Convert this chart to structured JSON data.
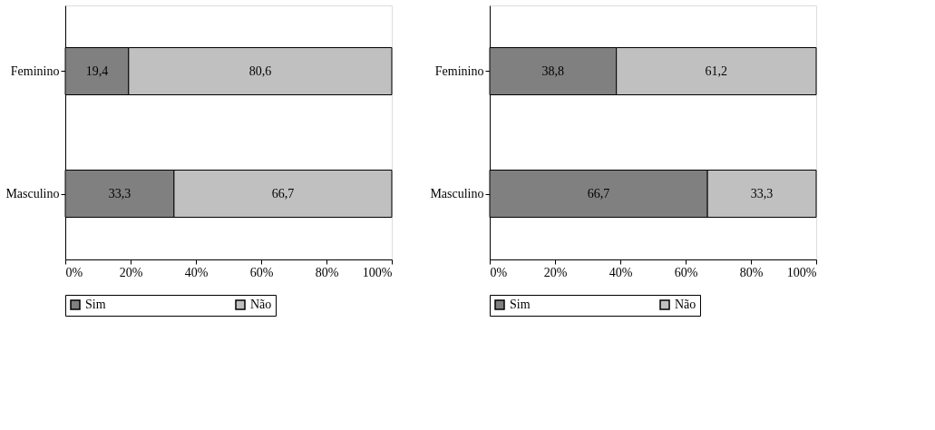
{
  "chart_data": [
    {
      "type": "bar",
      "orientation": "horizontal",
      "stacked": true,
      "categories": [
        "Feminino",
        "Masculino"
      ],
      "series": [
        {
          "name": "Sim",
          "color": "#808080",
          "values": [
            19.4,
            33.3
          ],
          "value_labels": [
            "19,4",
            "33,3"
          ]
        },
        {
          "name": "Não",
          "color": "#c0c0c0",
          "values": [
            80.6,
            66.7
          ],
          "value_labels": [
            "80,6",
            "66,7"
          ]
        }
      ],
      "xlim": [
        0,
        100
      ],
      "xticks": [
        {
          "value": 0,
          "label": "0%"
        },
        {
          "value": 20,
          "label": "20%"
        },
        {
          "value": 40,
          "label": "40%"
        },
        {
          "value": 60,
          "label": "60%"
        },
        {
          "value": 80,
          "label": "80%"
        },
        {
          "value": 100,
          "label": "100%"
        }
      ],
      "grid": false,
      "legend": "bottom"
    },
    {
      "type": "bar",
      "orientation": "horizontal",
      "stacked": true,
      "categories": [
        "Feminino",
        "Masculino"
      ],
      "series": [
        {
          "name": "Sim",
          "color": "#808080",
          "values": [
            38.8,
            66.7
          ],
          "value_labels": [
            "38,8",
            "66,7"
          ]
        },
        {
          "name": "Não",
          "color": "#c0c0c0",
          "values": [
            61.2,
            33.3
          ],
          "value_labels": [
            "61,2",
            "33,3"
          ]
        }
      ],
      "xlim": [
        0,
        100
      ],
      "xticks": [
        {
          "value": 0,
          "label": "0%"
        },
        {
          "value": 20,
          "label": "20%"
        },
        {
          "value": 40,
          "label": "40%"
        },
        {
          "value": 60,
          "label": "60%"
        },
        {
          "value": 80,
          "label": "80%"
        },
        {
          "value": 100,
          "label": "100%"
        }
      ],
      "grid": false,
      "legend": "bottom"
    }
  ]
}
